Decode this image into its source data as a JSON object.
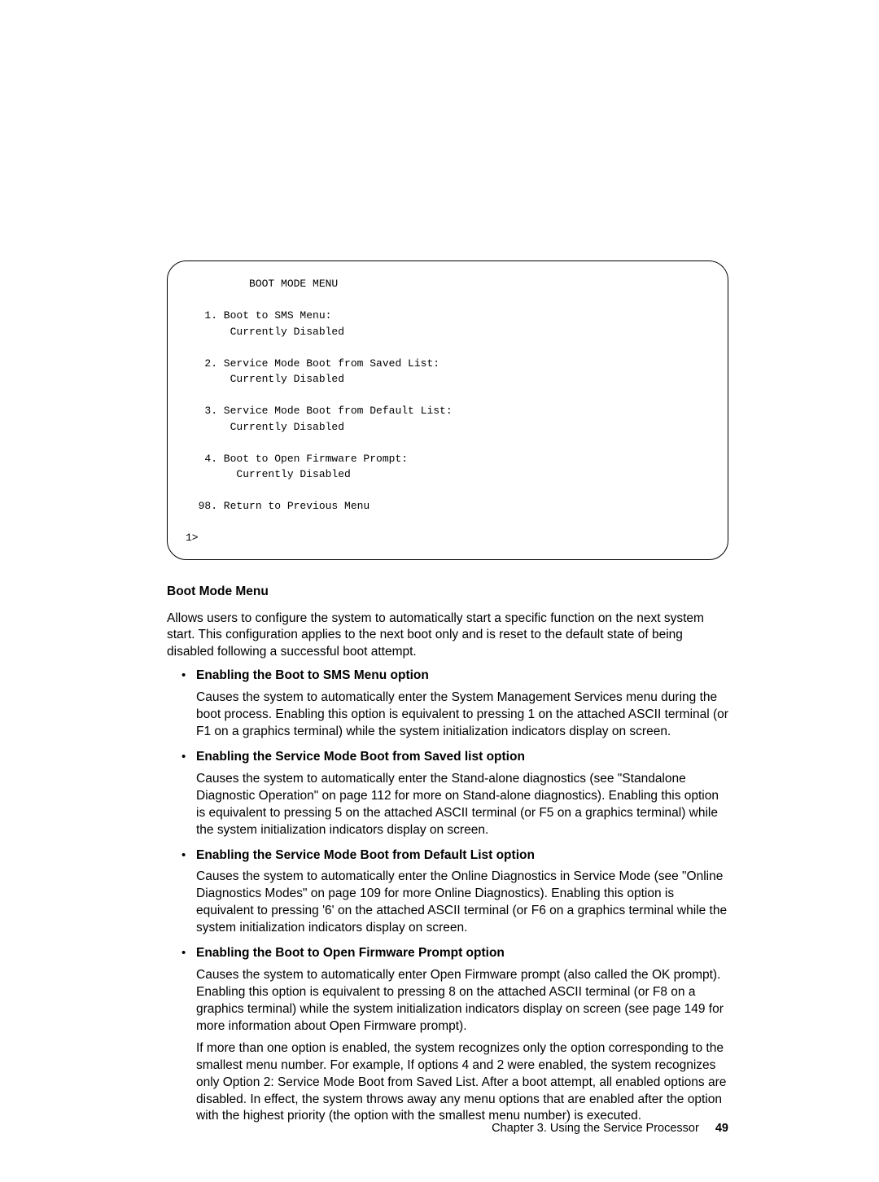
{
  "terminal": {
    "content": "          BOOT MODE MENU\n\n   1. Boot to SMS Menu:\n       Currently Disabled\n\n   2. Service Mode Boot from Saved List:\n       Currently Disabled\n\n   3. Service Mode Boot from Default List:\n       Currently Disabled\n\n   4. Boot to Open Firmware Prompt:\n        Currently Disabled\n\n  98. Return to Previous Menu\n\n1>"
  },
  "section": {
    "heading": "Boot Mode Menu",
    "intro": "Allows users to configure the system to automatically start a specific function on the next system start. This configuration applies to the next boot only and is reset to the default state of being disabled following a successful boot attempt."
  },
  "items": [
    {
      "title": "Enabling the Boot to SMS Menu option",
      "paras": [
        "Causes the system to automatically enter the System Management Services menu during the boot process. Enabling this option is equivalent to pressing 1 on the attached ASCII terminal (or F1 on a graphics terminal) while the system initialization indicators display on screen."
      ]
    },
    {
      "title": "Enabling the Service Mode Boot from Saved list option",
      "paras": [
        "Causes the system to automatically enter the Stand-alone diagnostics (see \"Standalone Diagnostic Operation\" on page 112 for more on Stand-alone diagnostics). Enabling this option is equivalent to pressing 5 on the attached ASCII terminal (or F5 on a graphics terminal) while the system initialization indicators display on screen."
      ]
    },
    {
      "title": "Enabling the Service Mode Boot from Default List option",
      "paras": [
        "Causes the system to automatically enter the Online Diagnostics in Service Mode (see \"Online Diagnostics Modes\" on page 109 for more Online Diagnostics). Enabling this option is equivalent to pressing '6' on the attached ASCII terminal (or F6 on a graphics terminal while the system initialization indicators display on screen."
      ]
    },
    {
      "title": "Enabling the Boot to Open Firmware Prompt option",
      "paras": [
        "Causes the system to automatically enter Open Firmware prompt (also called the OK prompt). Enabling this option is equivalent to pressing 8 on the attached ASCII terminal (or F8 on a graphics terminal) while the system initialization indicators display on screen (see page 149 for more information about Open Firmware prompt).",
        "If more than one option is enabled, the system recognizes only the option corresponding to the smallest menu number. For example, If options 4 and 2 were enabled, the system recognizes only Option 2: Service Mode Boot from Saved List. After a boot attempt, all enabled options are disabled. In effect, the system throws away any menu options that are enabled after the option with the highest priority (the option with the smallest menu number) is executed."
      ]
    }
  ],
  "footer": {
    "chapter": "Chapter 3. Using the Service Processor",
    "page": "49"
  }
}
